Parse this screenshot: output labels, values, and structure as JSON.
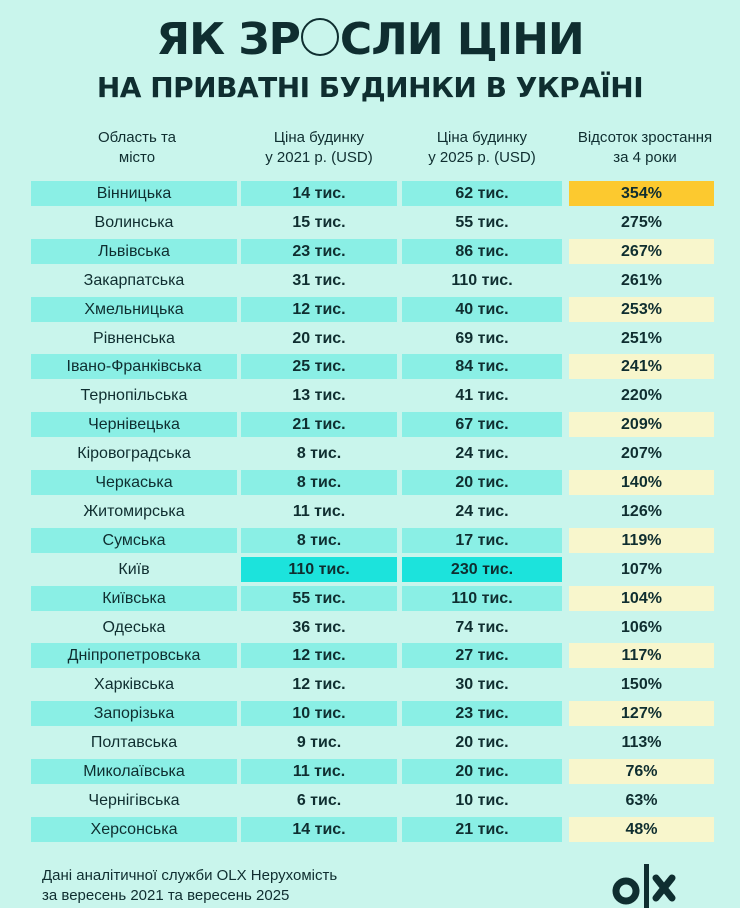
{
  "header": {
    "title_part1": "ЯК ЗР",
    "title_part2": "СЛИ ЦІНИ",
    "title_full": "ЯК ЗРОСЛИ ЦІНИ",
    "subtitle": "НА ПРИВАТНІ БУДИНКИ В УКРАЇНІ"
  },
  "columns": {
    "region_l1": "Область та",
    "region_l2": "місто",
    "price2021_l1": "Ціна будинку",
    "price2021_l2": "у 2021 р. (USD)",
    "price2025_l1": "Ціна будинку",
    "price2025_l2": "у 2025 р. (USD)",
    "growth_l1": "Відсоток зростання",
    "growth_l2": "за 4 роки"
  },
  "rows": [
    {
      "region": "Вінницька",
      "p2021": "14 тис.",
      "p2025": "62 тис.",
      "growth": "354%"
    },
    {
      "region": "Волинська",
      "p2021": "15 тис.",
      "p2025": "55 тис.",
      "growth": "275%"
    },
    {
      "region": "Львівська",
      "p2021": "23 тис.",
      "p2025": "86 тис.",
      "growth": "267%"
    },
    {
      "region": "Закарпатська",
      "p2021": "31 тис.",
      "p2025": "110 тис.",
      "growth": "261%"
    },
    {
      "region": "Хмельницька",
      "p2021": "12 тис.",
      "p2025": "40 тис.",
      "growth": "253%"
    },
    {
      "region": "Рівненська",
      "p2021": "20 тис.",
      "p2025": "69 тис.",
      "growth": "251%"
    },
    {
      "region": "Івано-Франківська",
      "p2021": "25 тис.",
      "p2025": "84 тис.",
      "growth": "241%"
    },
    {
      "region": "Тернопільська",
      "p2021": "13 тис.",
      "p2025": "41 тис.",
      "growth": "220%"
    },
    {
      "region": "Чернівецька",
      "p2021": "21 тис.",
      "p2025": "67 тис.",
      "growth": "209%"
    },
    {
      "region": "Кіровоградська",
      "p2021": "8 тис.",
      "p2025": "24 тис.",
      "growth": "207%"
    },
    {
      "region": "Черкаська",
      "p2021": "8 тис.",
      "p2025": "20 тис.",
      "growth": "140%"
    },
    {
      "region": "Житомирська",
      "p2021": "11 тис.",
      "p2025": "24 тис.",
      "growth": "126%"
    },
    {
      "region": "Сумська",
      "p2021": "8 тис.",
      "p2025": "17 тис.",
      "growth": "119%"
    },
    {
      "region": "Київ",
      "p2021": "110 тис.",
      "p2025": "230 тис.",
      "growth": "107%"
    },
    {
      "region": "Київська",
      "p2021": "55 тис.",
      "p2025": "110 тис.",
      "growth": "104%"
    },
    {
      "region": "Одеська",
      "p2021": "36 тис.",
      "p2025": "74 тис.",
      "growth": "106%"
    },
    {
      "region": "Дніпропетровська",
      "p2021": "12 тис.",
      "p2025": "27 тис.",
      "growth": "117%"
    },
    {
      "region": "Харківська",
      "p2021": "12 тис.",
      "p2025": "30 тис.",
      "growth": "150%"
    },
    {
      "region": "Запорізька",
      "p2021": "10 тис.",
      "p2025": "23 тис.",
      "growth": "127%"
    },
    {
      "region": "Полтавська",
      "p2021": "9 тис.",
      "p2025": "20 тис.",
      "growth": "113%"
    },
    {
      "region": "Миколаївська",
      "p2021": "11 тис.",
      "p2025": "20 тис.",
      "growth": "76%"
    },
    {
      "region": "Чернігівська",
      "p2021": "6 тис.",
      "p2025": "10 тис.",
      "growth": "63%"
    },
    {
      "region": "Херсонська",
      "p2021": "14 тис.",
      "p2025": "21 тис.",
      "growth": "48%"
    }
  ],
  "footer": {
    "line1": "Дані аналітичної служби OLX Нерухомість",
    "line2": "за вересень 2021 та вересень 2025",
    "logo": "olx-logo"
  },
  "colors": {
    "background": "#c9f5ec",
    "band": "#8aefe5",
    "growth_band": "#f8f6cc",
    "kyiv_highlight": "#1ce3dc",
    "top_highlight": "#fcc92f",
    "text": "#0f2e30"
  },
  "chart_data": {
    "type": "table",
    "title": "ЯК ЗРОСЛИ ЦІНИ НА ПРИВАТНІ БУДИНКИ В УКРАЇНІ",
    "columns": [
      "Область та місто",
      "Ціна будинку у 2021 р. (USD)",
      "Ціна будинку у 2025 р. (USD)",
      "Відсоток зростання за 4 роки"
    ],
    "categories": [
      "Вінницька",
      "Волинська",
      "Львівська",
      "Закарпатська",
      "Хмельницька",
      "Рівненська",
      "Івано-Франківська",
      "Тернопільська",
      "Чернівецька",
      "Кіровоградська",
      "Черкаська",
      "Житомирська",
      "Сумська",
      "Київ",
      "Київська",
      "Одеська",
      "Дніпропетровська",
      "Харківська",
      "Запорізька",
      "Полтавська",
      "Миколаївська",
      "Чернігівська",
      "Херсонська"
    ],
    "series": [
      {
        "name": "Ціна 2021 (тис. USD)",
        "values": [
          14,
          15,
          23,
          31,
          12,
          20,
          25,
          13,
          21,
          8,
          8,
          11,
          8,
          110,
          55,
          36,
          12,
          12,
          10,
          9,
          11,
          6,
          14
        ]
      },
      {
        "name": "Ціна 2025 (тис. USD)",
        "values": [
          62,
          55,
          86,
          110,
          40,
          69,
          84,
          41,
          67,
          24,
          20,
          24,
          17,
          230,
          110,
          74,
          27,
          30,
          23,
          20,
          20,
          10,
          21
        ]
      },
      {
        "name": "Зростання (%)",
        "values": [
          354,
          275,
          267,
          261,
          253,
          251,
          241,
          220,
          209,
          207,
          140,
          126,
          119,
          107,
          104,
          106,
          117,
          150,
          127,
          113,
          76,
          63,
          48
        ]
      }
    ],
    "annotations": [
      "Highest growth highlighted: Вінницька 354%",
      "Київ prices highlighted: 110 тис. → 230 тис."
    ],
    "source": "Дані аналітичної служби OLX Нерухомість за вересень 2021 та вересень 2025"
  }
}
